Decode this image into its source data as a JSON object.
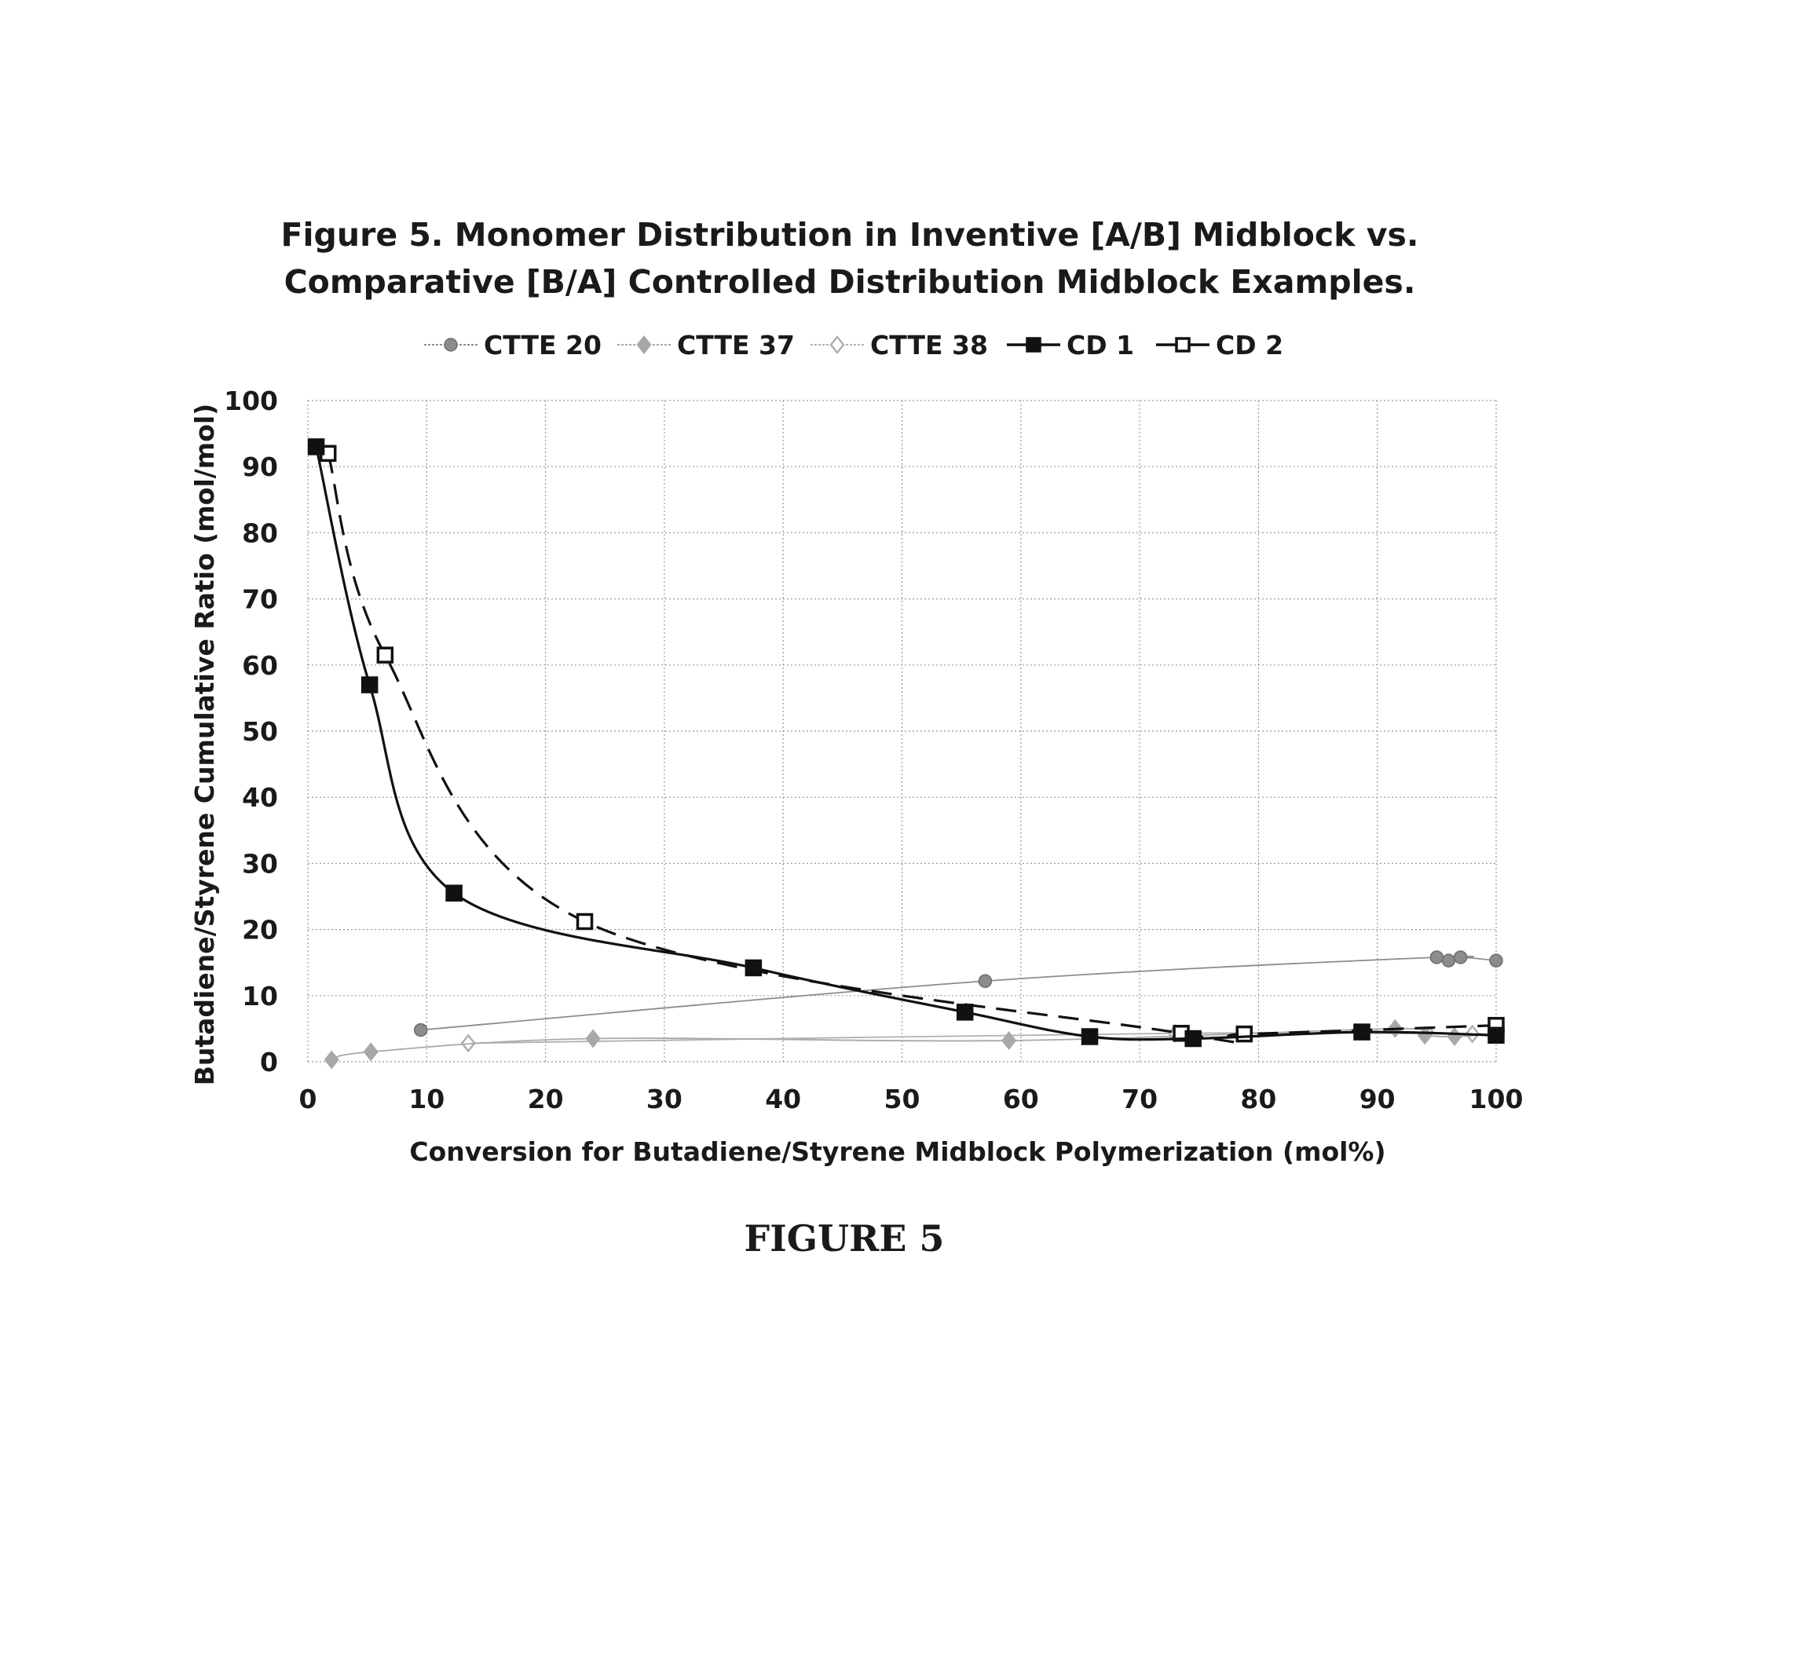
{
  "figure_caption": "FIGURE 5",
  "chart_data": {
    "type": "scatter",
    "title": "Figure 5. Monomer Distribution in Inventive [A/B] Midblock vs.",
    "subtitle": "Comparative [B/A] Controlled Distribution Midblock Examples.",
    "xlabel": "Conversion for Butadiene/Styrene Midblock Polymerization (mol%)",
    "ylabel": "Butadiene/Styrene Cumulative Ratio (mol/mol)",
    "xlim": [
      0,
      100
    ],
    "ylim": [
      0,
      100
    ],
    "xticks": [
      0,
      10,
      20,
      30,
      40,
      50,
      60,
      70,
      80,
      90,
      100
    ],
    "yticks": [
      0,
      10,
      20,
      30,
      40,
      50,
      60,
      70,
      80,
      90,
      100
    ],
    "grid": true,
    "legend_position": "top",
    "series": [
      {
        "name": "CTTE 20",
        "color": "#8c8c8c",
        "marker": "filled-circle",
        "line": "thin-solid",
        "x": [
          9.5,
          57,
          95,
          96,
          97,
          100
        ],
        "y": [
          4.8,
          12.2,
          15.8,
          15.3,
          15.8,
          15.3
        ]
      },
      {
        "name": "CTTE 37",
        "color": "#a8a8a8",
        "marker": "filled-diamond",
        "line": "thin-solid",
        "x": [
          2,
          5.3,
          24,
          59,
          91.5,
          94,
          96.5,
          100
        ],
        "y": [
          0.3,
          1.5,
          3.5,
          3.2,
          5,
          4,
          3.8,
          4.2
        ]
      },
      {
        "name": "CTTE 38",
        "color": "#b0b0b0",
        "marker": "open-diamond",
        "line": "thin-solid",
        "x": [
          13.5,
          73,
          98,
          100
        ],
        "y": [
          2.8,
          4.3,
          4.2,
          4.5
        ]
      },
      {
        "name": "CD 1",
        "color": "#111111",
        "marker": "filled-square",
        "line": "solid",
        "x": [
          0.7,
          5.2,
          12.3,
          37.5,
          55.3,
          65.8,
          74.5,
          88.7,
          100
        ],
        "y": [
          93,
          57,
          25.5,
          14.2,
          7.5,
          3.8,
          3.5,
          4.5,
          4
        ]
      },
      {
        "name": "CD 2",
        "color": "#111111",
        "marker": "open-square",
        "line": "dashed",
        "x": [
          1.7,
          6.5,
          23.3,
          73.5,
          78.8,
          100
        ],
        "y": [
          92,
          61.5,
          21.2,
          4.3,
          4.2,
          5.5
        ]
      }
    ]
  }
}
